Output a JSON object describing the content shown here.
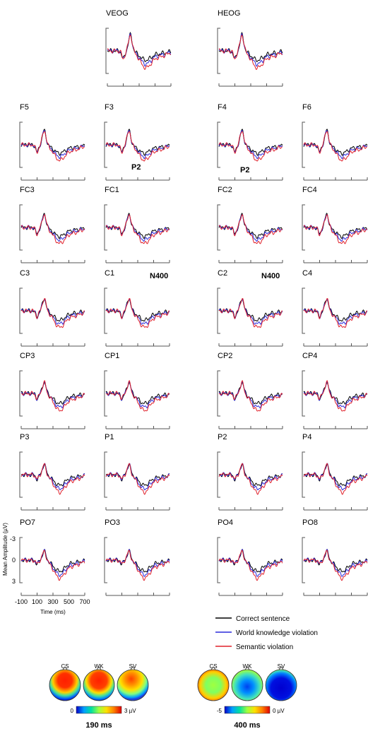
{
  "chart_data": {
    "type": "line",
    "x_label": "Time (ms)",
    "y_label": "Mean Amplitude (µV)",
    "x_ticks": [
      -100,
      100,
      300,
      500,
      700
    ],
    "y_ticks": [
      -3,
      0,
      3
    ],
    "y_negative_up": true,
    "series": [
      {
        "name": "Correct sentence",
        "color": "#000000"
      },
      {
        "name": "World knowledge violation",
        "color": "#2b2bdc"
      },
      {
        "name": "Semantic violation",
        "color": "#e0202a"
      }
    ],
    "channels": [
      "VEOG",
      "HEOG",
      "F5",
      "F3",
      "F4",
      "F6",
      "FC3",
      "FC1",
      "FC2",
      "FC4",
      "C3",
      "C1",
      "C2",
      "C4",
      "CP3",
      "CP1",
      "CP2",
      "CP4",
      "P3",
      "P1",
      "P2",
      "P4",
      "PO7",
      "PO3",
      "PO4",
      "PO8"
    ],
    "component_labels": [
      {
        "text": "P2",
        "channel": "F3"
      },
      {
        "text": "P2",
        "channel": "F4"
      },
      {
        "text": "N400",
        "channel": "C1"
      },
      {
        "text": "N400",
        "channel": "C2"
      }
    ],
    "topomaps": [
      {
        "conditions": [
          "CS",
          "WK",
          "SV"
        ],
        "time_label": "190 ms",
        "scale": [
          "0",
          "3 µV"
        ],
        "colorbar": [
          "#0000c8",
          "#00a0ff",
          "#00e0a0",
          "#a0ff40",
          "#ffe000",
          "#ff8000",
          "#e00000"
        ]
      },
      {
        "conditions": [
          "CS",
          "WK",
          "SV"
        ],
        "time_label": "400 ms",
        "scale": [
          "-5",
          "0 µV"
        ],
        "colorbar": [
          "#0000c8",
          "#00a0ff",
          "#00e0a0",
          "#a0ff40",
          "#ffe000",
          "#ff8000",
          "#e00000"
        ]
      }
    ]
  }
}
